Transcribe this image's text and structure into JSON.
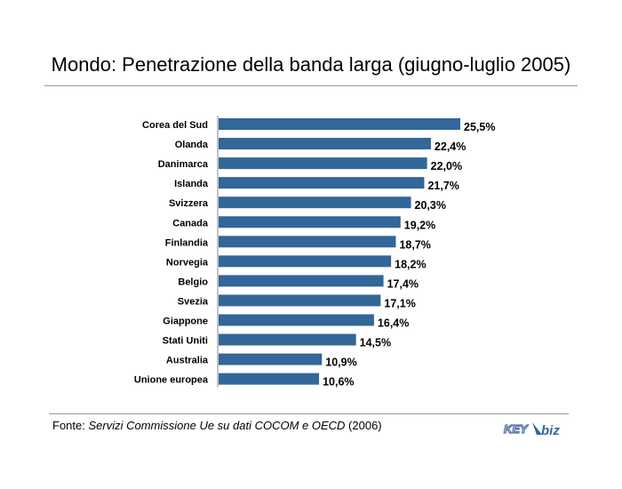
{
  "title": "Mondo: Penetrazione della banda larga (giugno-luglio 2005)",
  "source": {
    "prefix": "Fonte: ",
    "italic": "Servizi Commissione Ue su dati COCOM e OECD",
    "suffix": " (2006)"
  },
  "logo": {
    "text_key": "KEY",
    "text_biz": "biz"
  },
  "colors": {
    "bar": "#336699",
    "rule": "#999999"
  },
  "chart_data": {
    "type": "bar",
    "orientation": "horizontal",
    "categories": [
      "Corea del Sud",
      "Olanda",
      "Danimarca",
      "Islanda",
      "Svizzera",
      "Canada",
      "Finlandia",
      "Norvegia",
      "Belgio",
      "Svezia",
      "Giappone",
      "Stati Uniti",
      "Australia",
      "Unione europea"
    ],
    "values": [
      25.5,
      22.4,
      22.0,
      21.7,
      20.3,
      19.2,
      18.7,
      18.2,
      17.4,
      17.1,
      16.4,
      14.5,
      10.9,
      10.6
    ],
    "value_labels": [
      "25,5%",
      "22,4%",
      "22,0%",
      "21,7%",
      "20,3%",
      "19,2%",
      "18,7%",
      "18,2%",
      "17,4%",
      "17,1%",
      "16,4%",
      "14,5%",
      "10,9%",
      "10,6%"
    ],
    "xlim": [
      0,
      25.5
    ],
    "xlabel": "",
    "ylabel": "",
    "grid": false,
    "legend": "none"
  }
}
